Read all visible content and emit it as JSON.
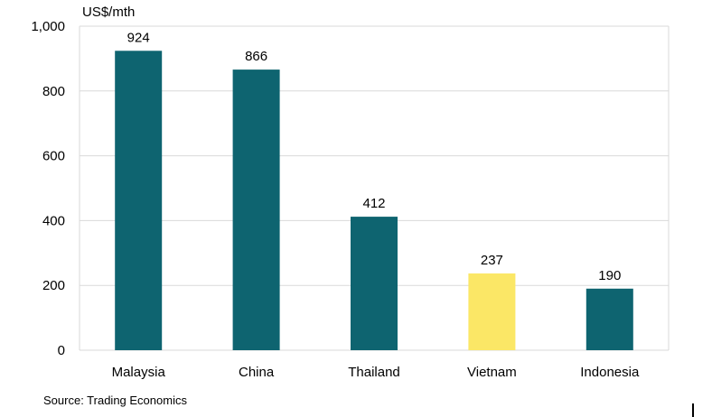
{
  "chart_data": {
    "type": "bar",
    "ylabel": "US$/mth",
    "categories": [
      "Malaysia",
      "China",
      "Thailand",
      "Vietnam",
      "Indonesia"
    ],
    "values": [
      924,
      866,
      412,
      237,
      190
    ],
    "data_labels": [
      "924",
      "866",
      "412",
      "237",
      "190"
    ],
    "ylim": [
      0,
      1000
    ],
    "yticks": [
      0,
      200,
      400,
      600,
      800,
      1000
    ],
    "ytick_labels": [
      "0",
      "200",
      "400",
      "600",
      "800",
      "1,000"
    ],
    "grid": true,
    "colors": [
      "#0e6470",
      "#0e6470",
      "#0e6470",
      "#fbe766",
      "#0e6470"
    ],
    "gridline_color": "#d9d9d9"
  },
  "source": "Source: Trading Economics"
}
